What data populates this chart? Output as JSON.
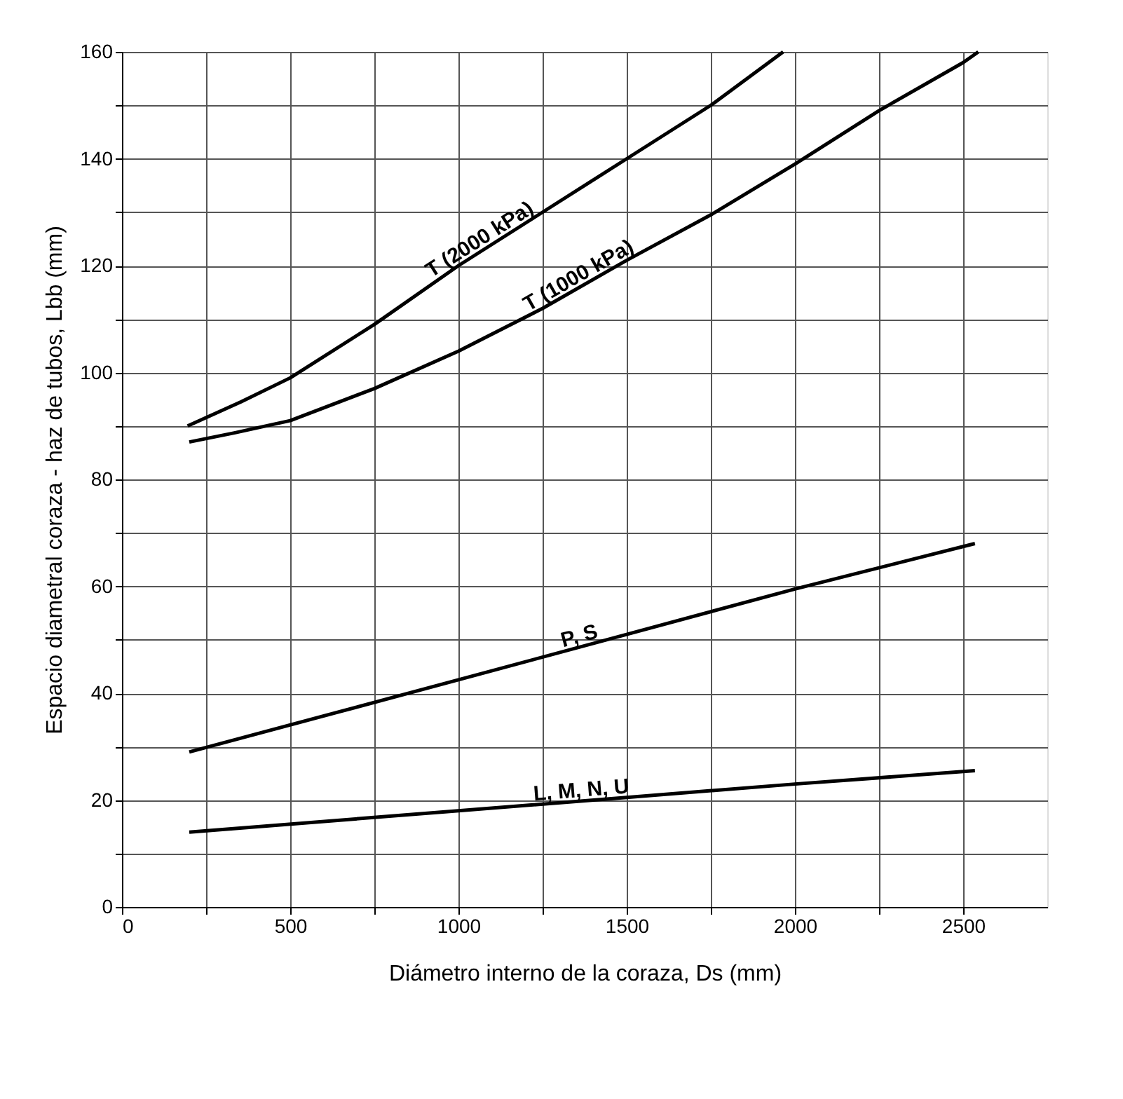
{
  "chart_data": {
    "type": "line",
    "xlabel": "Diámetro interno de la coraza, Ds (mm)",
    "ylabel": "Espacio diametral coraza - haz de tubos, Lbb (mm)",
    "xlim": [
      0,
      2750
    ],
    "ylim": [
      0,
      160
    ],
    "xticks": [
      0,
      {
        "value": 250,
        "label": null
      },
      500,
      {
        "value": 750,
        "label": null
      },
      1000,
      {
        "value": 1250,
        "label": null
      },
      1500,
      {
        "value": 1750,
        "label": null
      },
      2000,
      {
        "value": 2250,
        "label": null
      },
      2500
    ],
    "yticks": [
      0,
      {
        "value": 10,
        "label": null
      },
      20,
      {
        "value": 30,
        "label": null
      },
      40,
      {
        "value": 50,
        "label": null
      },
      60,
      {
        "value": 70,
        "label": null
      },
      80,
      {
        "value": 90,
        "label": null
      },
      100,
      {
        "value": 110,
        "label": null
      },
      120,
      {
        "value": 130,
        "label": null
      },
      140,
      {
        "value": 150,
        "label": null
      },
      160
    ],
    "grid": true,
    "legend": false,
    "marker": "none",
    "line_style": "solid",
    "series": [
      {
        "name": "T (2000 kPa)",
        "color": "#000000",
        "x": [
          195,
          353,
          500,
          750,
          1000,
          1250,
          1500,
          1750,
          1965
        ],
        "values": [
          90,
          94.5,
          99,
          109,
          120,
          130,
          140,
          150,
          160
        ]
      },
      {
        "name": "T (1000 kPa)",
        "color": "#000000",
        "x": [
          200,
          334,
          500,
          750,
          1000,
          1250,
          1500,
          1750,
          2000,
          2250,
          2500,
          2545
        ],
        "values": [
          87,
          88.7,
          91,
          97,
          104,
          112,
          121,
          129.5,
          139,
          149,
          158,
          160
        ]
      },
      {
        "name": "P, S",
        "color": "#000000",
        "x": [
          200,
          1000,
          1500,
          2000,
          2535
        ],
        "values": [
          29,
          42.5,
          51,
          59.5,
          68
        ]
      },
      {
        "name": "L, M, N, U",
        "color": "#000000",
        "x": [
          200,
          1000,
          1500,
          2000,
          2535
        ],
        "values": [
          14,
          18,
          20.5,
          23,
          25.5
        ]
      }
    ]
  }
}
